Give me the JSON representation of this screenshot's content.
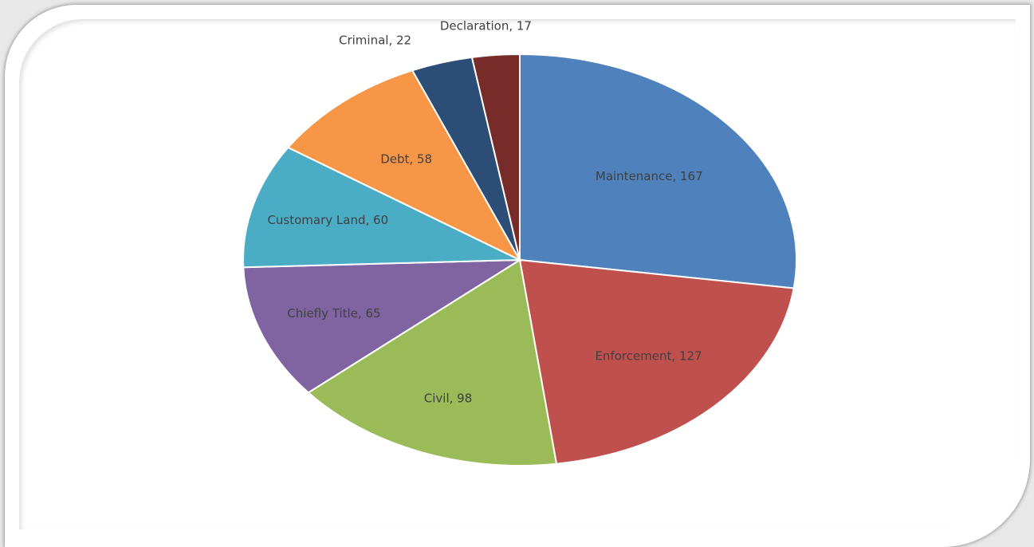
{
  "chart_data": {
    "type": "pie",
    "title": "",
    "slices": [
      {
        "label": "Maintenance, 167",
        "name": "Maintenance",
        "value": 167,
        "color": "#4f81bd"
      },
      {
        "label": "Enforcement, 127",
        "name": "Enforcement",
        "value": 127,
        "color": "#c0504d"
      },
      {
        "label": "Civil, 98",
        "name": "Civil",
        "value": 98,
        "color": "#9bbb59"
      },
      {
        "label": "Chiefly Title, 65",
        "name": "Chiefly Title",
        "value": 65,
        "color": "#8064a2"
      },
      {
        "label": "Customary Land, 60",
        "name": "Customary Land",
        "value": 60,
        "color": "#4bacc6"
      },
      {
        "label": "Debt, 58",
        "name": "Debt",
        "value": 58,
        "color": "#f79646"
      },
      {
        "label": "Criminal, 22",
        "name": "Criminal",
        "value": 22,
        "color": "#2c4d75"
      },
      {
        "label": "Declaration, 17",
        "name": "Declaration",
        "value": 17,
        "color": "#772c2a"
      }
    ],
    "start_angle": "12 o'clock",
    "direction": "clockwise",
    "legend": "none"
  }
}
